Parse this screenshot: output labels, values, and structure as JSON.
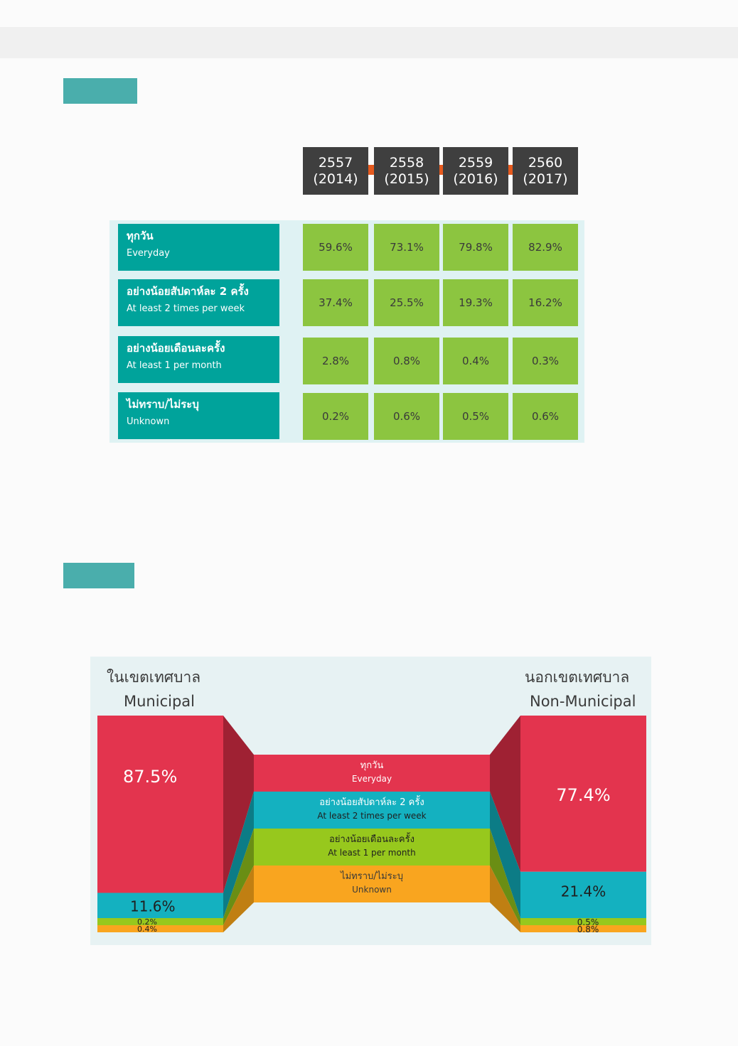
{
  "colors": {
    "everyday": "#e3344e",
    "twice_week": "#14b1c0",
    "once_month": "#97c81d",
    "unknown": "#f9a51f",
    "everyday_dark": "#9f2133",
    "twice_week_dark": "#0c7c86",
    "once_month_dark": "#6a8e14",
    "unknown_dark": "#c07f12"
  },
  "chart_data": [
    {
      "type": "table",
      "columns": [
        {
          "year_th": "2557",
          "year_en": "(2014)"
        },
        {
          "year_th": "2558",
          "year_en": "(2015)"
        },
        {
          "year_th": "2559",
          "year_en": "(2016)"
        },
        {
          "year_th": "2560",
          "year_en": "(2017)"
        }
      ],
      "rows": [
        {
          "label_th": "ทุกวัน",
          "label_en": "Everyday",
          "values": [
            "59.6%",
            "73.1%",
            "79.8%",
            "82.9%"
          ]
        },
        {
          "label_th": "อย่างน้อยสัปดาห์ละ 2 ครั้ง",
          "label_en": "At least 2 times per week",
          "values": [
            "37.4%",
            "25.5%",
            "19.3%",
            "16.2%"
          ]
        },
        {
          "label_th": "อย่างน้อยเดือนละครั้ง",
          "label_en": "At least 1 per month",
          "values": [
            "2.8%",
            "0.8%",
            "0.4%",
            "0.3%"
          ]
        },
        {
          "label_th": "ไม่ทราบ/ไม่ระบุ",
          "label_en": "Unknown",
          "values": [
            "0.2%",
            "0.6%",
            "0.5%",
            "0.6%"
          ]
        }
      ]
    },
    {
      "type": "bar",
      "stacked": true,
      "categories": [
        {
          "th": "ในเขตเทศบาล",
          "en": "Municipal"
        },
        {
          "th": "นอกเขตเทศบาล",
          "en": "Non-Municipal"
        }
      ],
      "series": [
        {
          "key": "everyday",
          "name_th": "ทุกวัน",
          "name_en": "Everyday",
          "values": [
            87.5,
            77.4
          ],
          "labels": [
            "87.5%",
            "77.4%"
          ]
        },
        {
          "key": "twice_week",
          "name_th": "อย่างน้อยสัปดาห์ละ 2 ครั้ง",
          "name_en": "At least 2 times per week",
          "values": [
            11.6,
            21.4
          ],
          "labels": [
            "11.6%",
            "21.4%"
          ]
        },
        {
          "key": "once_month",
          "name_th": "อย่างน้อยเดือนละครั้ง",
          "name_en": "At least 1 per month",
          "values": [
            0.2,
            0.5
          ],
          "labels": [
            "0.2%",
            "0.5%"
          ]
        },
        {
          "key": "unknown",
          "name_th": "ไม่ทราบ/ไม่ระบุ",
          "name_en": "Unknown",
          "values": [
            0.4,
            0.8
          ],
          "labels": [
            "0.4%",
            "0.8%"
          ]
        }
      ]
    }
  ]
}
